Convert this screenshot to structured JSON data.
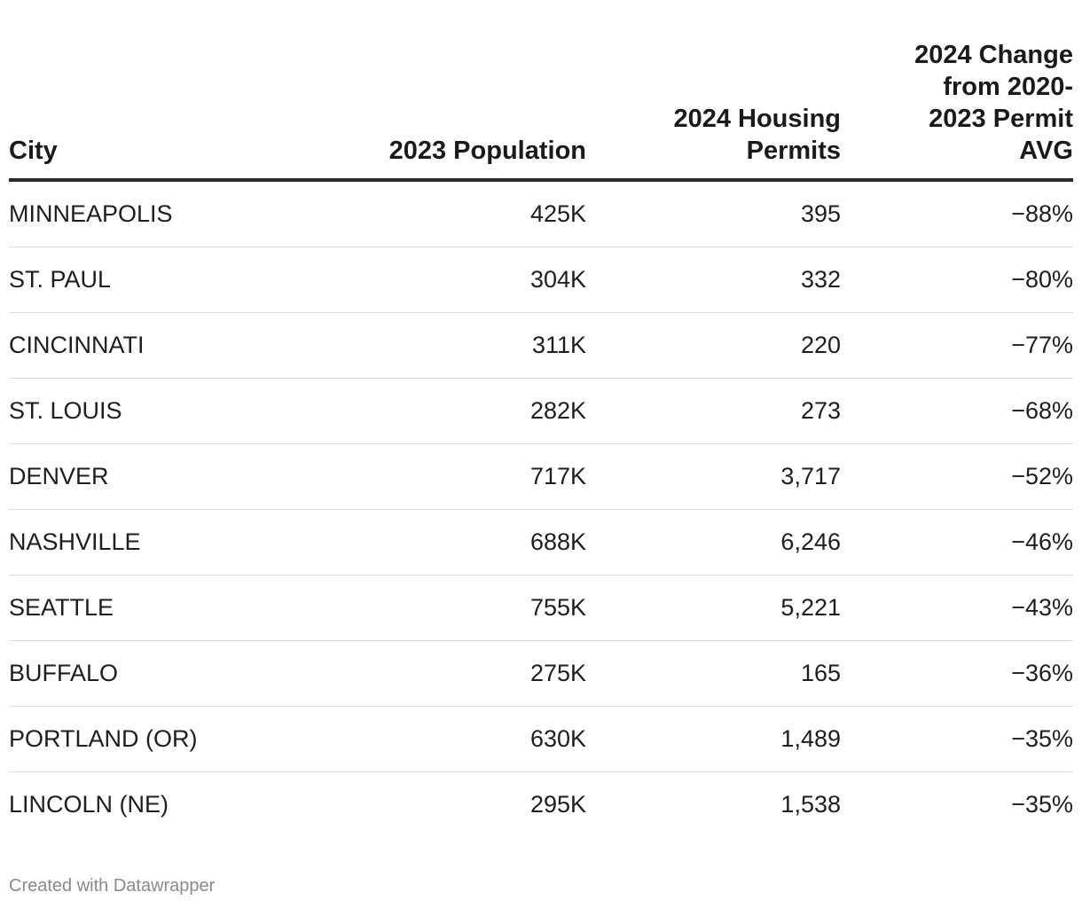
{
  "chart_data": {
    "type": "table",
    "columns": [
      "City",
      "2023 Population",
      "2024 Housing Permits",
      "2024 Change from 2020-2023 Permit AVG"
    ],
    "rows": [
      {
        "city": "MINNEAPOLIS",
        "population": "425K",
        "permits": "395",
        "change": "−88%"
      },
      {
        "city": "ST. PAUL",
        "population": "304K",
        "permits": "332",
        "change": "−80%"
      },
      {
        "city": "CINCINNATI",
        "population": "311K",
        "permits": "220",
        "change": "−77%"
      },
      {
        "city": "ST. LOUIS",
        "population": "282K",
        "permits": "273",
        "change": "−68%"
      },
      {
        "city": "DENVER",
        "population": "717K",
        "permits": "3,717",
        "change": "−52%"
      },
      {
        "city": "NASHVILLE",
        "population": "688K",
        "permits": "6,246",
        "change": "−46%"
      },
      {
        "city": "SEATTLE",
        "population": "755K",
        "permits": "5,221",
        "change": "−43%"
      },
      {
        "city": "BUFFALO",
        "population": "275K",
        "permits": "165",
        "change": "−36%"
      },
      {
        "city": "PORTLAND (OR)",
        "population": "630K",
        "permits": "1,489",
        "change": "−35%"
      },
      {
        "city": "LINCOLN (NE)",
        "population": "295K",
        "permits": "1,538",
        "change": "−35%"
      }
    ]
  },
  "footer": {
    "credit": "Created with Datawrapper"
  }
}
